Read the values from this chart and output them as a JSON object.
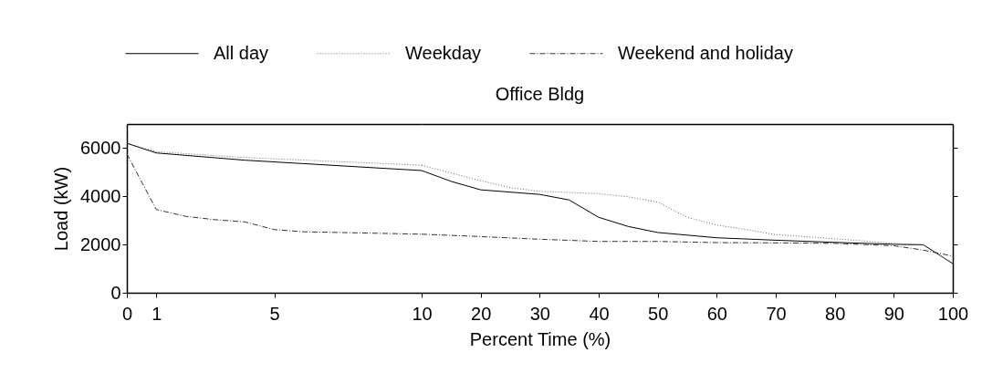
{
  "chart_data": [
    {
      "type": "line",
      "xlabel": "Percent Time (%)",
      "ylabel": "Load (kW)",
      "xlim": [
        0,
        10
      ],
      "xticks": [
        0,
        1,
        5,
        10
      ],
      "ylim": [
        0,
        7000
      ],
      "yticks": [
        0,
        2000,
        4000,
        6000
      ],
      "grid": false,
      "legend": "top",
      "marker": "none",
      "series": [
        {
          "name": "All day",
          "color": "#000000",
          "line_style": "solid",
          "x": [
            0,
            1,
            4,
            10
          ],
          "values": [
            6200,
            5800,
            5500,
            5070
          ]
        },
        {
          "name": "Weekday",
          "color": "#666666",
          "line_style": "dotted",
          "x": [
            0,
            1,
            4,
            10
          ],
          "values": [
            6200,
            5850,
            5610,
            5290
          ]
        },
        {
          "name": "Weekend and holiday",
          "color": "#333333",
          "line_style": "dashdot",
          "x": [
            0,
            1,
            2,
            3,
            4,
            5,
            6,
            10
          ],
          "values": [
            5760,
            3450,
            3170,
            3030,
            2940,
            2620,
            2530,
            2430
          ]
        }
      ]
    },
    {
      "type": "line",
      "title": "Office Bldg",
      "xlim": [
        10,
        100
      ],
      "xticks": [
        20,
        30,
        40,
        50,
        60,
        70,
        80,
        90,
        100
      ],
      "ylim": [
        0,
        7000
      ],
      "yticks": [
        0,
        2000,
        4000,
        6000
      ],
      "tick_labels": "x",
      "grid": false,
      "marker": "none",
      "series": [
        {
          "name": "All day",
          "color": "#000000",
          "line_style": "solid",
          "x": [
            10,
            15,
            20,
            30,
            35,
            40,
            45,
            50,
            60,
            70,
            80,
            90,
            95,
            100
          ],
          "values": [
            5070,
            4620,
            4270,
            4080,
            3850,
            3130,
            2750,
            2500,
            2280,
            2180,
            2090,
            2010,
            1990,
            1210
          ]
        },
        {
          "name": "Weekday",
          "color": "#666666",
          "line_style": "dotted",
          "x": [
            10,
            20,
            25,
            30,
            40,
            45,
            50,
            55,
            60,
            65,
            70,
            80,
            90,
            95,
            100
          ],
          "values": [
            5290,
            4650,
            4360,
            4210,
            4110,
            3980,
            3760,
            3130,
            2810,
            2620,
            2410,
            2240,
            2050,
            1990,
            1210
          ]
        },
        {
          "name": "Weekend and holiday",
          "color": "#333333",
          "line_style": "dashdot",
          "x": [
            10,
            20,
            30,
            40,
            50,
            60,
            70,
            80,
            90,
            95,
            100
          ],
          "values": [
            2430,
            2330,
            2220,
            2130,
            2130,
            2080,
            2070,
            2050,
            1950,
            1770,
            1520
          ]
        }
      ]
    }
  ]
}
